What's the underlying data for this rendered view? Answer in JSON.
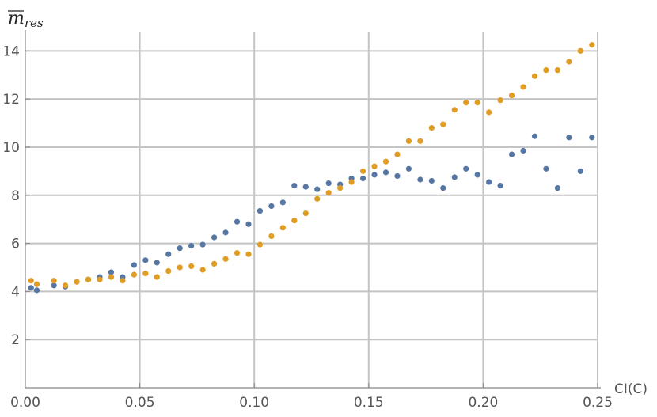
{
  "chart_data": {
    "type": "scatter",
    "title": "",
    "xlabel": "CI(C)",
    "ylabel": {
      "main": "m",
      "sub": "res",
      "overline": true
    },
    "xlim": [
      0,
      0.25
    ],
    "ylim": [
      0,
      14.8
    ],
    "xticks": [
      "0.00",
      "0.05",
      "0.10",
      "0.15",
      "0.20",
      "0.25"
    ],
    "yticks": [
      "2",
      "4",
      "6",
      "8",
      "10",
      "12",
      "14"
    ],
    "grid": true,
    "series": [
      {
        "color": "#5677a4",
        "points": [
          [
            0.0025,
            4.15
          ],
          [
            0.005,
            4.05
          ],
          [
            0.0125,
            4.25
          ],
          [
            0.0175,
            4.2
          ],
          [
            0.0275,
            4.5
          ],
          [
            0.0325,
            4.6
          ],
          [
            0.0375,
            4.8
          ],
          [
            0.0425,
            4.6
          ],
          [
            0.0475,
            5.1
          ],
          [
            0.0525,
            5.3
          ],
          [
            0.0575,
            5.2
          ],
          [
            0.0625,
            5.55
          ],
          [
            0.0675,
            5.8
          ],
          [
            0.0725,
            5.9
          ],
          [
            0.0775,
            5.95
          ],
          [
            0.0825,
            6.25
          ],
          [
            0.0875,
            6.45
          ],
          [
            0.0925,
            6.9
          ],
          [
            0.0975,
            6.8
          ],
          [
            0.1025,
            7.35
          ],
          [
            0.1075,
            7.55
          ],
          [
            0.1125,
            7.7
          ],
          [
            0.1175,
            8.4
          ],
          [
            0.1225,
            8.35
          ],
          [
            0.1275,
            8.25
          ],
          [
            0.1325,
            8.5
          ],
          [
            0.1375,
            8.45
          ],
          [
            0.1425,
            8.7
          ],
          [
            0.1475,
            8.7
          ],
          [
            0.1525,
            8.85
          ],
          [
            0.1575,
            8.95
          ],
          [
            0.1625,
            8.8
          ],
          [
            0.1675,
            9.1
          ],
          [
            0.1725,
            8.65
          ],
          [
            0.1775,
            8.6
          ],
          [
            0.1825,
            8.3
          ],
          [
            0.1875,
            8.75
          ],
          [
            0.1925,
            9.1
          ],
          [
            0.1975,
            8.85
          ],
          [
            0.2025,
            8.55
          ],
          [
            0.2075,
            8.4
          ],
          [
            0.2125,
            9.7
          ],
          [
            0.2175,
            9.85
          ],
          [
            0.2225,
            10.45
          ],
          [
            0.2275,
            9.1
          ],
          [
            0.2325,
            8.3
          ],
          [
            0.2375,
            10.4
          ],
          [
            0.2425,
            9.0
          ],
          [
            0.2475,
            10.4
          ]
        ]
      },
      {
        "color": "#e19c24",
        "points": [
          [
            0.0025,
            4.45
          ],
          [
            0.005,
            4.3
          ],
          [
            0.0125,
            4.45
          ],
          [
            0.0175,
            4.25
          ],
          [
            0.0225,
            4.4
          ],
          [
            0.0275,
            4.5
          ],
          [
            0.0325,
            4.5
          ],
          [
            0.0375,
            4.6
          ],
          [
            0.0425,
            4.45
          ],
          [
            0.0475,
            4.7
          ],
          [
            0.0525,
            4.75
          ],
          [
            0.0575,
            4.6
          ],
          [
            0.0625,
            4.85
          ],
          [
            0.0675,
            5.0
          ],
          [
            0.0725,
            5.05
          ],
          [
            0.0775,
            4.9
          ],
          [
            0.0825,
            5.15
          ],
          [
            0.0875,
            5.35
          ],
          [
            0.0925,
            5.6
          ],
          [
            0.0975,
            5.55
          ],
          [
            0.1025,
            5.95
          ],
          [
            0.1075,
            6.3
          ],
          [
            0.1125,
            6.65
          ],
          [
            0.1175,
            6.95
          ],
          [
            0.1225,
            7.25
          ],
          [
            0.1275,
            7.85
          ],
          [
            0.1325,
            8.1
          ],
          [
            0.1375,
            8.3
          ],
          [
            0.1425,
            8.55
          ],
          [
            0.1475,
            9.0
          ],
          [
            0.1525,
            9.2
          ],
          [
            0.1575,
            9.4
          ],
          [
            0.1625,
            9.7
          ],
          [
            0.1675,
            10.25
          ],
          [
            0.1725,
            10.25
          ],
          [
            0.1775,
            10.8
          ],
          [
            0.1825,
            10.95
          ],
          [
            0.1875,
            11.55
          ],
          [
            0.1925,
            11.85
          ],
          [
            0.1975,
            11.85
          ],
          [
            0.2025,
            11.45
          ],
          [
            0.2075,
            11.95
          ],
          [
            0.2125,
            12.15
          ],
          [
            0.2175,
            12.5
          ],
          [
            0.2225,
            12.95
          ],
          [
            0.2275,
            13.2
          ],
          [
            0.2325,
            13.2
          ],
          [
            0.2375,
            13.55
          ],
          [
            0.2425,
            14.0
          ],
          [
            0.2475,
            14.25
          ]
        ]
      }
    ]
  }
}
